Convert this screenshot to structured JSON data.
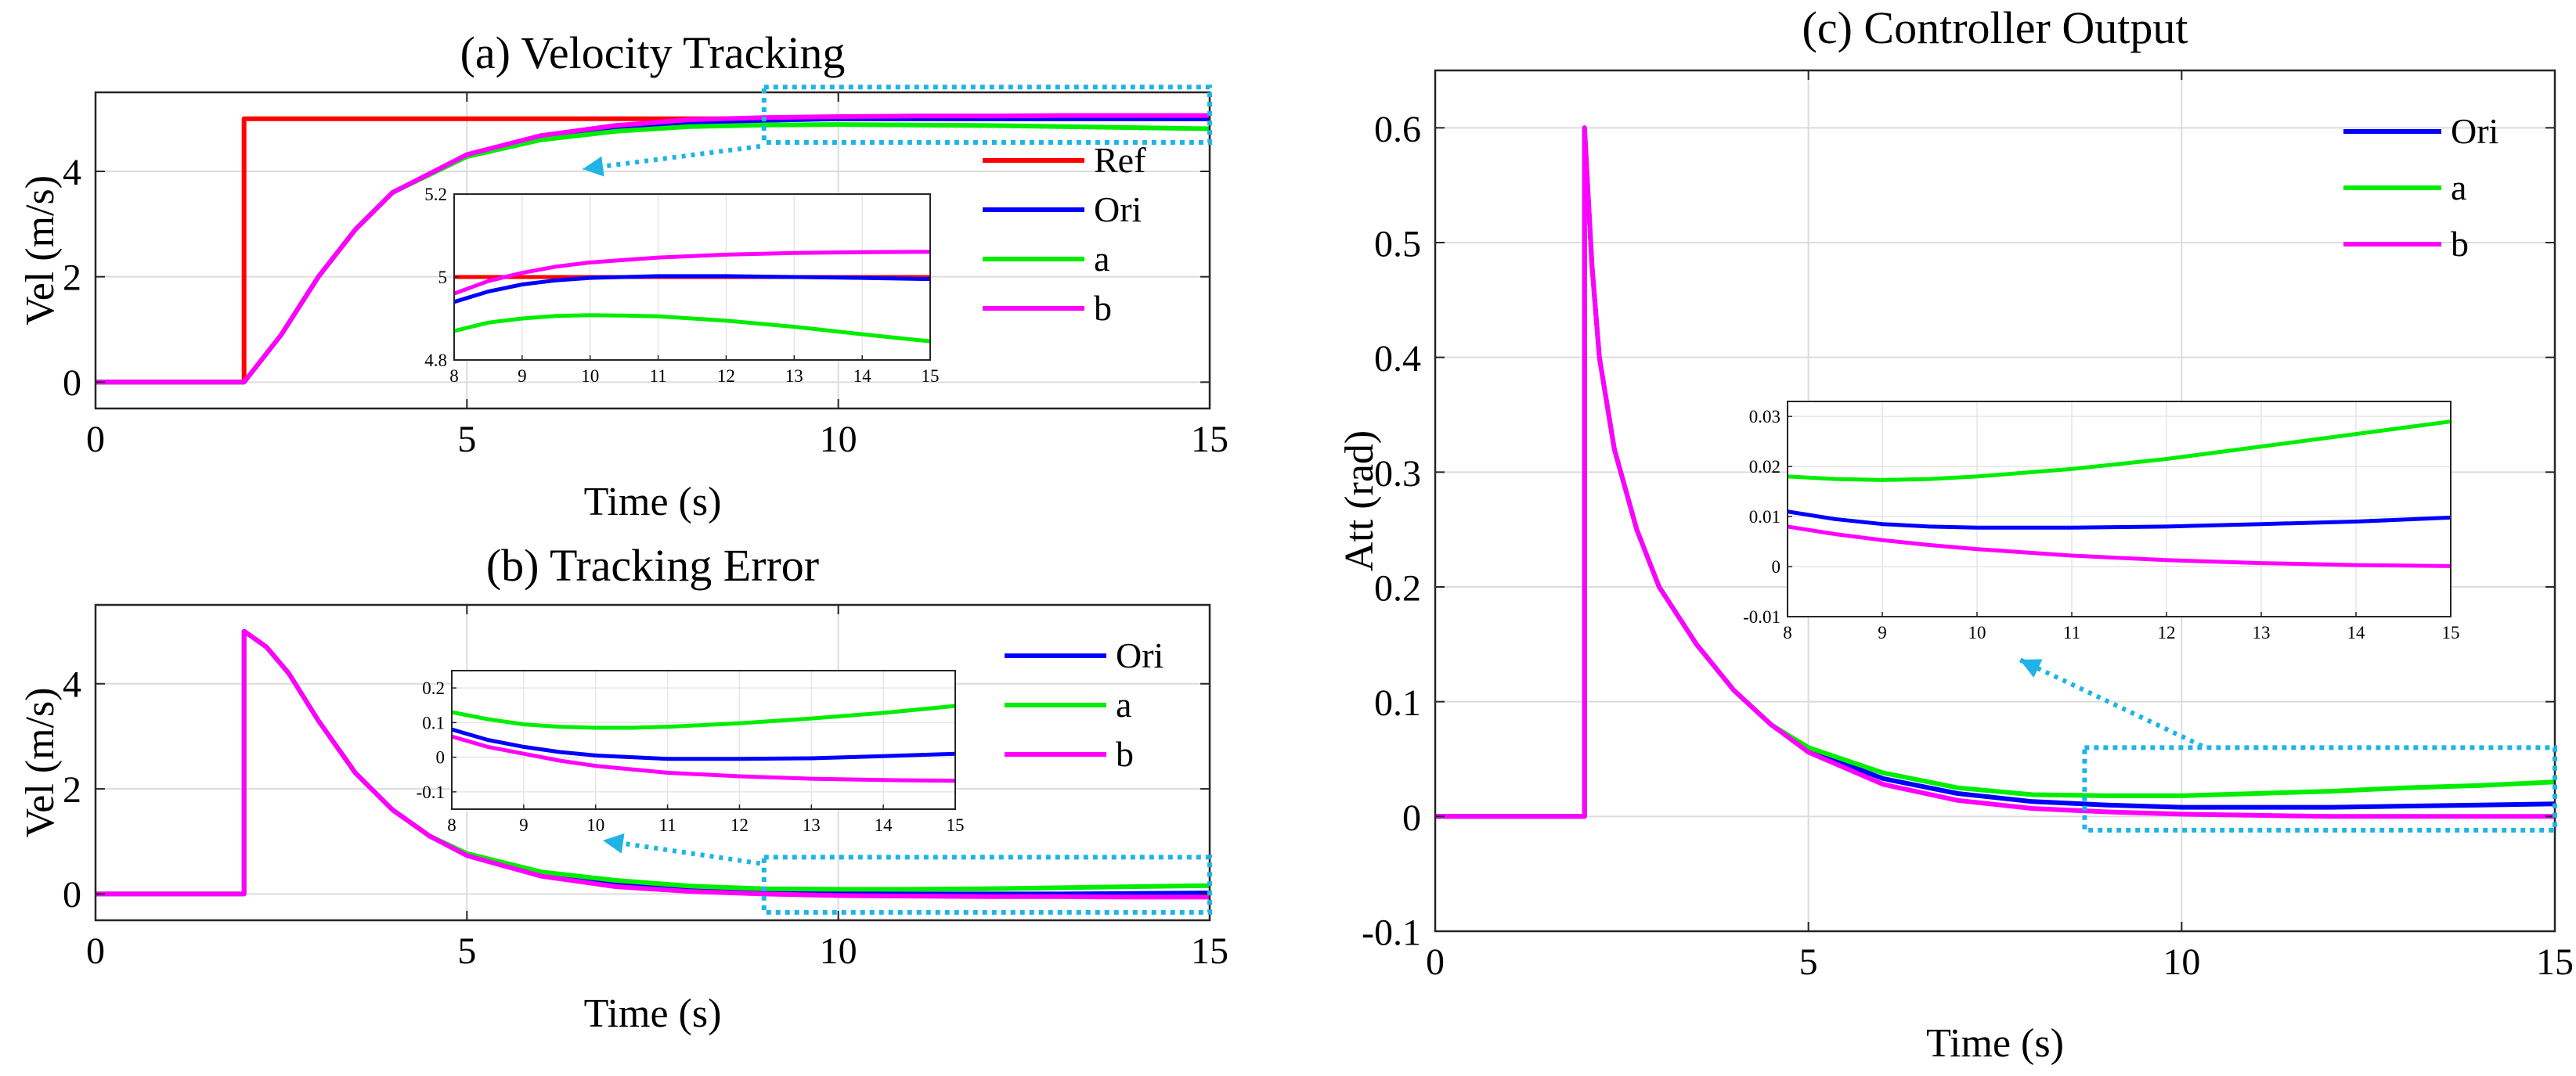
{
  "chart_data": [
    {
      "id": "a",
      "type": "line",
      "title": "(a) Velocity Tracking",
      "xlabel": "Time (s)",
      "ylabel": "Vel (m/s)",
      "xlim": [
        0,
        15
      ],
      "ylim": [
        -0.5,
        5.5
      ],
      "xticks": [
        0,
        5,
        10,
        15
      ],
      "yticks": [
        0,
        2,
        4
      ],
      "grid": true,
      "legend": [
        "Ref",
        "Ori",
        "a",
        "b"
      ],
      "colors": {
        "Ref": "#ff0000",
        "Ori": "#0000ff",
        "a": "#00ee00",
        "b": "#ff00ff"
      },
      "series": [
        {
          "name": "Ref",
          "x": [
            0,
            2,
            2,
            15
          ],
          "y": [
            0,
            0,
            5,
            5
          ]
        },
        {
          "name": "Ori",
          "x": [
            0,
            2,
            2.5,
            3,
            3.5,
            4,
            5,
            6,
            7,
            8,
            9,
            10,
            11,
            12,
            13,
            14,
            15
          ],
          "y": [
            0,
            0,
            0.9,
            2.0,
            2.9,
            3.6,
            4.3,
            4.65,
            4.83,
            4.92,
            4.97,
            5.0,
            5.0,
            5.0,
            5.0,
            5.0,
            5.0
          ]
        },
        {
          "name": "a",
          "x": [
            0,
            2,
            2.5,
            3,
            3.5,
            4,
            5,
            6,
            7,
            8,
            9,
            10,
            11,
            12,
            13,
            14,
            15
          ],
          "y": [
            0,
            0,
            0.9,
            2.0,
            2.9,
            3.6,
            4.28,
            4.6,
            4.76,
            4.85,
            4.88,
            4.89,
            4.88,
            4.87,
            4.85,
            4.83,
            4.81
          ]
        },
        {
          "name": "b",
          "x": [
            0,
            2,
            2.5,
            3,
            3.5,
            4,
            5,
            6,
            7,
            8,
            9,
            10,
            11,
            12,
            13,
            14,
            15
          ],
          "y": [
            0,
            0,
            0.9,
            2.0,
            2.9,
            3.6,
            4.32,
            4.68,
            4.87,
            4.98,
            5.02,
            5.04,
            5.05,
            5.05,
            5.06,
            5.06,
            5.06
          ]
        }
      ],
      "annotations": [
        {
          "type": "zoom-box",
          "x": [
            9,
            15
          ],
          "y": [
            4.55,
            5.6
          ]
        }
      ],
      "inset": {
        "xlim": [
          8,
          15
        ],
        "ylim": [
          4.8,
          5.2
        ],
        "xticks": [
          8,
          9,
          10,
          11,
          12,
          13,
          14,
          15
        ],
        "yticks": [
          4.8,
          5,
          5.2
        ],
        "ytick_labels": [
          "4.8",
          "5",
          "5.2"
        ],
        "series": [
          {
            "name": "Ref",
            "x": [
              8,
              15
            ],
            "y": [
              5.0,
              5.0
            ]
          },
          {
            "name": "Ori",
            "x": [
              8,
              8.5,
              9,
              9.5,
              10,
              11,
              12,
              13,
              14,
              15
            ],
            "y": [
              4.94,
              4.965,
              4.982,
              4.992,
              4.998,
              5.002,
              5.002,
              5.0,
              4.998,
              4.995
            ]
          },
          {
            "name": "a",
            "x": [
              8,
              8.5,
              9,
              9.5,
              10,
              10.5,
              11,
              12,
              13,
              14,
              15
            ],
            "y": [
              4.87,
              4.89,
              4.9,
              4.906,
              4.908,
              4.907,
              4.905,
              4.895,
              4.88,
              4.862,
              4.845
            ]
          },
          {
            "name": "b",
            "x": [
              8,
              8.5,
              9,
              9.5,
              10,
              11,
              12,
              13,
              14,
              15
            ],
            "y": [
              4.96,
              4.99,
              5.01,
              5.025,
              5.035,
              5.047,
              5.054,
              5.058,
              5.06,
              5.061
            ]
          }
        ]
      }
    },
    {
      "id": "b",
      "type": "line",
      "title": "(b) Tracking Error",
      "xlabel": "Time (s)",
      "ylabel": "Vel (m/s)",
      "xlim": [
        0,
        15
      ],
      "ylim": [
        -0.5,
        5.5
      ],
      "xticks": [
        0,
        5,
        10,
        15
      ],
      "yticks": [
        0,
        2,
        4
      ],
      "grid": true,
      "legend": [
        "Ori",
        "a",
        "b"
      ],
      "colors": {
        "Ori": "#0000ff",
        "a": "#00ee00",
        "b": "#ff00ff"
      },
      "series": [
        {
          "name": "Ori",
          "x": [
            0,
            2,
            2,
            2.3,
            2.6,
            3,
            3.5,
            4,
            4.5,
            5,
            6,
            7,
            8,
            9,
            10,
            11,
            12,
            13,
            14,
            15
          ],
          "y": [
            0,
            0,
            5,
            4.7,
            4.2,
            3.3,
            2.3,
            1.6,
            1.1,
            0.75,
            0.38,
            0.2,
            0.1,
            0.04,
            0.01,
            0.0,
            0.0,
            0.0,
            0.01,
            0.02
          ]
        },
        {
          "name": "a",
          "x": [
            0,
            2,
            2,
            2.3,
            2.6,
            3,
            3.5,
            4,
            4.5,
            5,
            6,
            7,
            8,
            9,
            10,
            11,
            12,
            13,
            14,
            15
          ],
          "y": [
            0,
            0,
            5,
            4.7,
            4.2,
            3.3,
            2.3,
            1.6,
            1.1,
            0.77,
            0.42,
            0.26,
            0.15,
            0.1,
            0.09,
            0.09,
            0.1,
            0.12,
            0.14,
            0.16
          ]
        },
        {
          "name": "b",
          "x": [
            0,
            2,
            2,
            2.3,
            2.6,
            3,
            3.5,
            4,
            4.5,
            5,
            6,
            7,
            8,
            9,
            10,
            11,
            12,
            13,
            14,
            15
          ],
          "y": [
            0,
            0,
            5,
            4.7,
            4.2,
            3.3,
            2.3,
            1.6,
            1.1,
            0.73,
            0.34,
            0.14,
            0.05,
            0.0,
            -0.03,
            -0.04,
            -0.05,
            -0.05,
            -0.06,
            -0.06
          ]
        }
      ],
      "annotations": [
        {
          "type": "zoom-box",
          "x": [
            9,
            15
          ],
          "y": [
            -0.35,
            0.7
          ]
        }
      ],
      "inset": {
        "xlim": [
          8,
          15
        ],
        "ylim": [
          -0.15,
          0.25
        ],
        "xticks": [
          8,
          9,
          10,
          11,
          12,
          13,
          14,
          15
        ],
        "yticks": [
          -0.1,
          0,
          0.1,
          0.2
        ],
        "ytick_labels": [
          "-0.1",
          "0",
          "0.1",
          "0.2"
        ],
        "series": [
          {
            "name": "Ori",
            "x": [
              8,
              8.5,
              9,
              9.5,
              10,
              11,
              12,
              13,
              14,
              15
            ],
            "y": [
              0.08,
              0.05,
              0.03,
              0.015,
              0.005,
              -0.005,
              -0.005,
              -0.003,
              0.003,
              0.01
            ]
          },
          {
            "name": "a",
            "x": [
              8,
              8.5,
              9,
              9.5,
              10,
              10.5,
              11,
              12,
              13,
              14,
              15
            ],
            "y": [
              0.13,
              0.11,
              0.095,
              0.088,
              0.085,
              0.085,
              0.088,
              0.098,
              0.112,
              0.128,
              0.148
            ]
          },
          {
            "name": "b",
            "x": [
              8,
              8.5,
              9,
              9.5,
              10,
              11,
              12,
              13,
              14,
              15
            ],
            "y": [
              0.06,
              0.03,
              0.01,
              -0.01,
              -0.025,
              -0.045,
              -0.055,
              -0.062,
              -0.066,
              -0.068
            ]
          }
        ]
      }
    },
    {
      "id": "c",
      "type": "line",
      "title": "(c) Controller Output",
      "xlabel": "Time (s)",
      "ylabel": "Att (rad)",
      "xlim": [
        0,
        15
      ],
      "ylim": [
        -0.1,
        0.65
      ],
      "xticks": [
        0,
        5,
        10,
        15
      ],
      "yticks": [
        -0.1,
        0,
        0.1,
        0.2,
        0.3,
        0.4,
        0.5,
        0.6
      ],
      "ytick_labels": [
        "-0.1",
        "0",
        "0.1",
        "0.2",
        "0.3",
        "0.4",
        "0.5",
        "0.6"
      ],
      "grid": true,
      "legend": [
        "Ori",
        "a",
        "b"
      ],
      "colors": {
        "Ori": "#0000ff",
        "a": "#00ee00",
        "b": "#ff00ff"
      },
      "series": [
        {
          "name": "Ori",
          "x": [
            0,
            2,
            2,
            2.1,
            2.2,
            2.4,
            2.7,
            3,
            3.5,
            4,
            4.5,
            5,
            6,
            7,
            8,
            9,
            10,
            11,
            12,
            13,
            14,
            15
          ],
          "y": [
            0,
            0,
            0.6,
            0.48,
            0.4,
            0.32,
            0.25,
            0.2,
            0.15,
            0.11,
            0.08,
            0.058,
            0.033,
            0.02,
            0.013,
            0.01,
            0.008,
            0.008,
            0.008,
            0.009,
            0.01,
            0.011
          ]
        },
        {
          "name": "a",
          "x": [
            0,
            2,
            2,
            2.1,
            2.2,
            2.4,
            2.7,
            3,
            3.5,
            4,
            4.5,
            5,
            6,
            7,
            8,
            9,
            10,
            11,
            12,
            13,
            14,
            15
          ],
          "y": [
            0,
            0,
            0.6,
            0.48,
            0.4,
            0.32,
            0.25,
            0.2,
            0.15,
            0.11,
            0.08,
            0.06,
            0.038,
            0.025,
            0.019,
            0.018,
            0.018,
            0.02,
            0.022,
            0.025,
            0.027,
            0.03
          ]
        },
        {
          "name": "b",
          "x": [
            0,
            2,
            2,
            2.1,
            2.2,
            2.4,
            2.7,
            3,
            3.5,
            4,
            4.5,
            5,
            6,
            7,
            8,
            9,
            10,
            11,
            12,
            13,
            14,
            15
          ],
          "y": [
            0,
            0,
            0.6,
            0.48,
            0.4,
            0.32,
            0.25,
            0.2,
            0.15,
            0.11,
            0.08,
            0.056,
            0.028,
            0.014,
            0.007,
            0.004,
            0.002,
            0.001,
            0.0,
            0.0,
            0.0,
            0.0
          ]
        }
      ],
      "annotations": [
        {
          "type": "zoom-box",
          "x": [
            8.7,
            15
          ],
          "y": [
            -0.012,
            0.06
          ]
        }
      ],
      "inset": {
        "xlim": [
          8,
          15
        ],
        "ylim": [
          -0.01,
          0.033
        ],
        "xticks": [
          8,
          9,
          10,
          11,
          12,
          13,
          14,
          15
        ],
        "yticks": [
          -0.01,
          0,
          0.01,
          0.02,
          0.03
        ],
        "ytick_labels": [
          "-0.01",
          "0",
          "0.01",
          "0.02",
          "0.03"
        ],
        "series": [
          {
            "name": "Ori",
            "x": [
              8,
              8.5,
              9,
              9.5,
              10,
              11,
              12,
              13,
              14,
              15
            ],
            "y": [
              0.011,
              0.0095,
              0.0085,
              0.008,
              0.0078,
              0.0078,
              0.008,
              0.0085,
              0.009,
              0.0098
            ]
          },
          {
            "name": "a",
            "x": [
              8,
              8.5,
              9,
              9.5,
              10,
              11,
              12,
              13,
              14,
              15
            ],
            "y": [
              0.018,
              0.0175,
              0.0173,
              0.0175,
              0.018,
              0.0195,
              0.0215,
              0.024,
              0.0265,
              0.029
            ]
          },
          {
            "name": "b",
            "x": [
              8,
              8.5,
              9,
              9.5,
              10,
              11,
              12,
              13,
              14,
              15
            ],
            "y": [
              0.008,
              0.0065,
              0.0053,
              0.0043,
              0.0035,
              0.0022,
              0.0013,
              0.0007,
              0.0003,
              0.0001
            ]
          }
        ]
      }
    }
  ]
}
